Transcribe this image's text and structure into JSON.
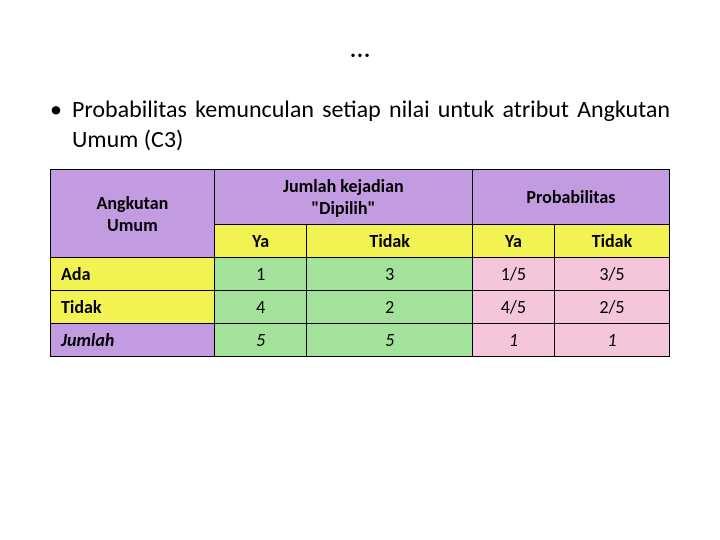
{
  "title": "…",
  "bullet": "Probabilitas kemunculan setiap nilai untuk atribut Angkutan Umum (C3)",
  "table": {
    "colors": {
      "header_purple": "#c39be1",
      "header_yellow": "#f2f253",
      "cell_green": "#a3e29b",
      "cell_pink": "#f5c6db",
      "border": "#000000",
      "background": "#ffffff"
    },
    "header": {
      "row_label_line1": "Angkutan",
      "row_label_line2": "Umum",
      "group1_line1": "Jumlah kejadian",
      "group1_line2": "\"Dipilih\"",
      "group2": "Probabilitas",
      "sub": [
        "Ya",
        "Tidak",
        "Ya",
        "Tidak"
      ]
    },
    "rows": [
      {
        "label": "Ada",
        "cells": [
          "1",
          "3",
          "1/5",
          "3/5"
        ],
        "italic": false
      },
      {
        "label": "Tidak",
        "cells": [
          "4",
          "2",
          "4/5",
          "2/5"
        ],
        "italic": false
      },
      {
        "label": "Jumlah",
        "cells": [
          "5",
          "5",
          "1",
          "1"
        ],
        "italic": true
      }
    ]
  }
}
